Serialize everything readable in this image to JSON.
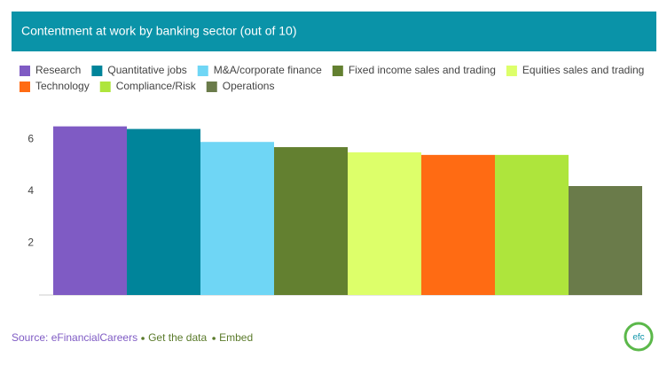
{
  "chart_data": {
    "type": "bar",
    "title": "Contentment at work by banking sector (out of 10)",
    "categories": [
      "Research",
      "Quantitative jobs",
      "M&A/corporate finance",
      "Fixed income sales and trading",
      "Equities sales and trading",
      "Technology",
      "Compliance/Risk",
      "Operations"
    ],
    "values": [
      6.5,
      6.4,
      5.9,
      5.7,
      5.5,
      5.4,
      5.4,
      4.2
    ],
    "colors": [
      "#7f5bc4",
      "#00849a",
      "#6fd6f5",
      "#638030",
      "#ddff6a",
      "#ff6b13",
      "#aee53c",
      "#6a7b4a"
    ],
    "ylim": [
      0,
      7
    ],
    "yticks": [
      2,
      4,
      6
    ],
    "grid": false,
    "source": "Source: eFinancialCareers",
    "links": [
      "Get the data",
      "Embed"
    ],
    "logo": "efc"
  }
}
